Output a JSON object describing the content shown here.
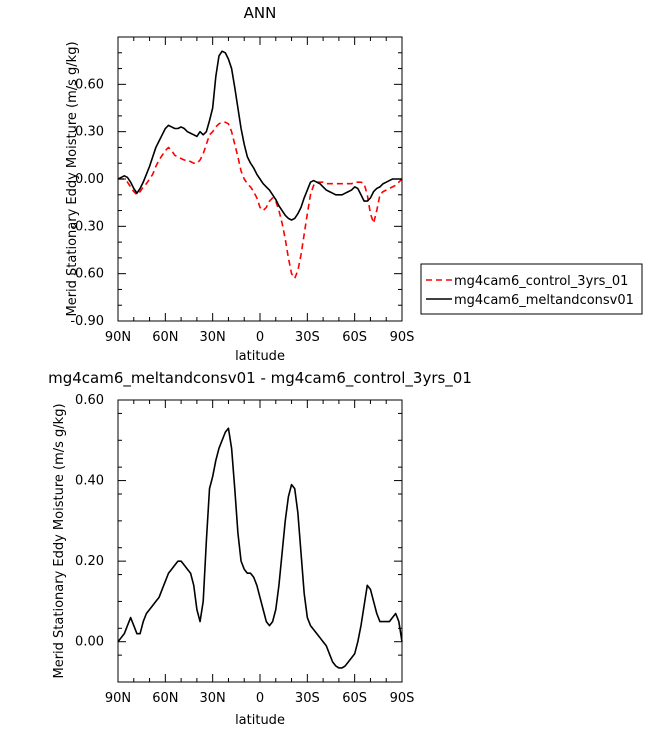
{
  "chart_data": [
    {
      "type": "line",
      "title": "ANN",
      "xlabel": "latitude",
      "ylabel": "Merid Stationary Eddy Moisture (m/s g/kg)",
      "xlim": [
        90,
        -90
      ],
      "ylim": [
        -0.9,
        0.9
      ],
      "x_ticks": [
        90,
        60,
        30,
        0,
        -30,
        -60,
        -90
      ],
      "x_tick_labels": [
        "90N",
        "60N",
        "30N",
        "0",
        "30S",
        "60S",
        "90S"
      ],
      "y_ticks": [
        -0.9,
        -0.6,
        -0.3,
        0.0,
        0.3,
        0.6
      ],
      "y_tick_labels": [
        "-0.90",
        "-0.60",
        "-0.30",
        "0.00",
        "0.30",
        "0.60"
      ],
      "grid": false,
      "legend_position": "outside-right",
      "series": [
        {
          "name": "mg4cam6_control_3yrs_01",
          "color": "#ff0000",
          "dash": "dashed",
          "x": [
            90,
            88,
            86,
            84,
            82,
            80,
            78,
            76,
            74,
            72,
            70,
            68,
            66,
            64,
            62,
            60,
            58,
            56,
            54,
            52,
            50,
            48,
            46,
            44,
            42,
            40,
            38,
            36,
            34,
            32,
            30,
            28,
            26,
            24,
            22,
            20,
            18,
            16,
            14,
            12,
            10,
            8,
            6,
            4,
            2,
            0,
            -2,
            -4,
            -6,
            -8,
            -10,
            -12,
            -14,
            -16,
            -18,
            -20,
            -22,
            -24,
            -26,
            -28,
            -30,
            -32,
            -34,
            -36,
            -38,
            -40,
            -42,
            -44,
            -46,
            -48,
            -50,
            -52,
            -54,
            -56,
            -58,
            -60,
            -62,
            -64,
            -66,
            -68,
            -70,
            -72,
            -74,
            -76,
            -78,
            -80,
            -82,
            -84,
            -86,
            -88,
            -90
          ],
          "y": [
            0.0,
            0.0,
            0.0,
            -0.02,
            -0.05,
            -0.08,
            -0.1,
            -0.08,
            -0.05,
            -0.03,
            0.0,
            0.03,
            0.08,
            0.12,
            0.15,
            0.18,
            0.2,
            0.18,
            0.15,
            0.14,
            0.13,
            0.12,
            0.12,
            0.11,
            0.1,
            0.1,
            0.12,
            0.16,
            0.22,
            0.28,
            0.3,
            0.33,
            0.35,
            0.36,
            0.36,
            0.35,
            0.3,
            0.22,
            0.14,
            0.05,
            0.0,
            -0.03,
            -0.05,
            -0.08,
            -0.12,
            -0.18,
            -0.2,
            -0.18,
            -0.14,
            -0.12,
            -0.14,
            -0.2,
            -0.28,
            -0.38,
            -0.5,
            -0.6,
            -0.63,
            -0.58,
            -0.48,
            -0.35,
            -0.22,
            -0.1,
            -0.04,
            -0.02,
            -0.02,
            -0.02,
            -0.03,
            -0.03,
            -0.03,
            -0.03,
            -0.03,
            -0.03,
            -0.03,
            -0.03,
            -0.03,
            -0.02,
            -0.02,
            -0.02,
            -0.03,
            -0.1,
            -0.22,
            -0.28,
            -0.2,
            -0.1,
            -0.08,
            -0.07,
            -0.06,
            -0.05,
            -0.04,
            -0.02,
            0.0
          ]
        },
        {
          "name": "mg4cam6_meltandconsv01",
          "color": "#000000",
          "dash": "solid",
          "x": [
            90,
            88,
            86,
            84,
            82,
            80,
            78,
            76,
            74,
            72,
            70,
            68,
            66,
            64,
            62,
            60,
            58,
            56,
            54,
            52,
            50,
            48,
            46,
            44,
            42,
            40,
            38,
            36,
            34,
            32,
            30,
            28,
            26,
            24,
            22,
            20,
            18,
            16,
            14,
            12,
            10,
            8,
            6,
            4,
            2,
            0,
            -2,
            -4,
            -6,
            -8,
            -10,
            -12,
            -14,
            -16,
            -18,
            -20,
            -22,
            -24,
            -26,
            -28,
            -30,
            -32,
            -34,
            -36,
            -38,
            -40,
            -42,
            -44,
            -46,
            -48,
            -50,
            -52,
            -54,
            -56,
            -58,
            -60,
            -62,
            -64,
            -66,
            -68,
            -70,
            -72,
            -74,
            -76,
            -78,
            -80,
            -82,
            -84,
            -86,
            -88,
            -90
          ],
          "y": [
            0.0,
            0.01,
            0.02,
            0.01,
            -0.02,
            -0.06,
            -0.09,
            -0.06,
            -0.02,
            0.03,
            0.08,
            0.14,
            0.2,
            0.24,
            0.28,
            0.32,
            0.34,
            0.33,
            0.32,
            0.32,
            0.33,
            0.32,
            0.3,
            0.29,
            0.28,
            0.27,
            0.3,
            0.28,
            0.3,
            0.37,
            0.45,
            0.65,
            0.78,
            0.81,
            0.8,
            0.76,
            0.7,
            0.58,
            0.45,
            0.32,
            0.22,
            0.14,
            0.1,
            0.07,
            0.03,
            0.0,
            -0.03,
            -0.05,
            -0.07,
            -0.1,
            -0.13,
            -0.17,
            -0.2,
            -0.23,
            -0.25,
            -0.26,
            -0.25,
            -0.22,
            -0.18,
            -0.12,
            -0.07,
            -0.02,
            -0.01,
            -0.02,
            -0.03,
            -0.05,
            -0.07,
            -0.08,
            -0.09,
            -0.1,
            -0.1,
            -0.1,
            -0.09,
            -0.08,
            -0.07,
            -0.05,
            -0.06,
            -0.1,
            -0.14,
            -0.14,
            -0.12,
            -0.08,
            -0.06,
            -0.05,
            -0.03,
            -0.02,
            -0.01,
            0.0,
            0.0,
            0.0,
            0.0
          ]
        }
      ]
    },
    {
      "type": "line",
      "title": "mg4cam6_meltandconsv01 - mg4cam6_control_3yrs_01",
      "xlabel": "latitude",
      "ylabel": "Merid Stationary Eddy Moisture (m/s g/kg)",
      "xlim": [
        90,
        -90
      ],
      "ylim": [
        -0.1,
        0.6
      ],
      "x_ticks": [
        90,
        60,
        30,
        0,
        -30,
        -60,
        -90
      ],
      "x_tick_labels": [
        "90N",
        "60N",
        "30N",
        "0",
        "30S",
        "60S",
        "90S"
      ],
      "y_ticks": [
        0.0,
        0.2,
        0.4,
        0.6
      ],
      "y_tick_labels": [
        "0.00",
        "0.20",
        "0.40",
        "0.60"
      ],
      "grid": false,
      "series": [
        {
          "color": "#000000",
          "dash": "solid",
          "x": [
            90,
            88,
            86,
            84,
            82,
            80,
            78,
            76,
            74,
            72,
            70,
            68,
            66,
            64,
            62,
            60,
            58,
            56,
            54,
            52,
            50,
            48,
            46,
            44,
            42,
            40,
            38,
            36,
            34,
            32,
            30,
            28,
            26,
            24,
            22,
            20,
            18,
            16,
            14,
            12,
            10,
            8,
            6,
            4,
            2,
            0,
            -2,
            -4,
            -6,
            -8,
            -10,
            -12,
            -14,
            -16,
            -18,
            -20,
            -22,
            -24,
            -26,
            -28,
            -30,
            -32,
            -34,
            -36,
            -38,
            -40,
            -42,
            -44,
            -46,
            -48,
            -50,
            -52,
            -54,
            -56,
            -58,
            -60,
            -62,
            -64,
            -66,
            -68,
            -70,
            -72,
            -74,
            -76,
            -78,
            -80,
            -82,
            -84,
            -86,
            -88,
            -90
          ],
          "y": [
            0.0,
            0.01,
            0.02,
            0.04,
            0.06,
            0.04,
            0.02,
            0.02,
            0.05,
            0.07,
            0.08,
            0.09,
            0.1,
            0.11,
            0.13,
            0.15,
            0.17,
            0.18,
            0.19,
            0.2,
            0.2,
            0.19,
            0.18,
            0.17,
            0.14,
            0.08,
            0.05,
            0.1,
            0.25,
            0.38,
            0.41,
            0.45,
            0.48,
            0.5,
            0.52,
            0.53,
            0.48,
            0.38,
            0.27,
            0.2,
            0.18,
            0.17,
            0.17,
            0.16,
            0.14,
            0.11,
            0.08,
            0.05,
            0.04,
            0.05,
            0.08,
            0.14,
            0.22,
            0.3,
            0.36,
            0.39,
            0.38,
            0.32,
            0.22,
            0.12,
            0.06,
            0.04,
            0.03,
            0.02,
            0.01,
            0.0,
            -0.01,
            -0.03,
            -0.05,
            -0.06,
            -0.065,
            -0.065,
            -0.06,
            -0.05,
            -0.04,
            -0.03,
            0.0,
            0.04,
            0.09,
            0.14,
            0.13,
            0.1,
            0.07,
            0.05,
            0.05,
            0.05,
            0.05,
            0.06,
            0.07,
            0.05,
            0.0
          ]
        }
      ]
    }
  ]
}
